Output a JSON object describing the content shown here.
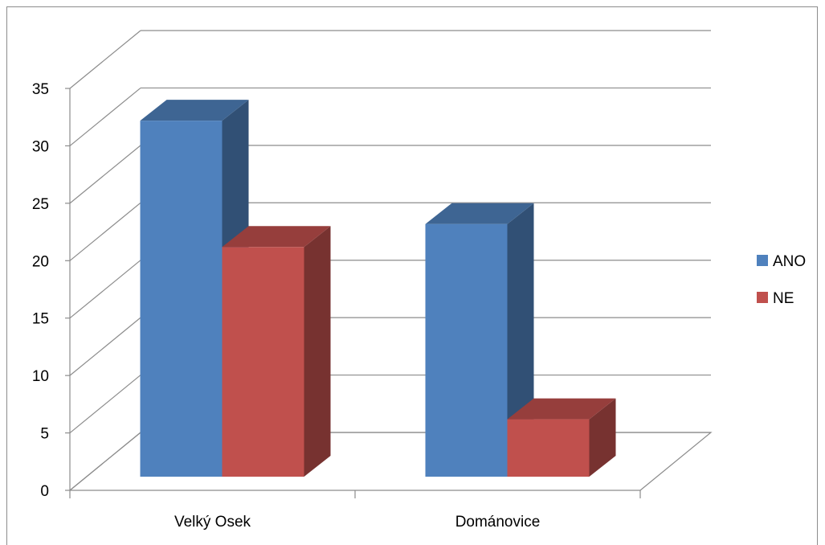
{
  "chart_data": {
    "type": "bar",
    "title": "",
    "xlabel": "",
    "ylabel": "",
    "categories": [
      "Velký Osek",
      "Dománovice"
    ],
    "series": [
      {
        "name": "ANO",
        "values": [
          31,
          22
        ],
        "color": "#4F81BD"
      },
      {
        "name": "NE",
        "values": [
          20,
          5
        ],
        "color": "#C0504D"
      }
    ],
    "ylim": [
      0,
      35
    ],
    "yticks": [
      "0",
      "5",
      "10",
      "15",
      "20",
      "25",
      "30",
      "35"
    ],
    "grid": true,
    "legend_position": "right",
    "three_d": true
  }
}
